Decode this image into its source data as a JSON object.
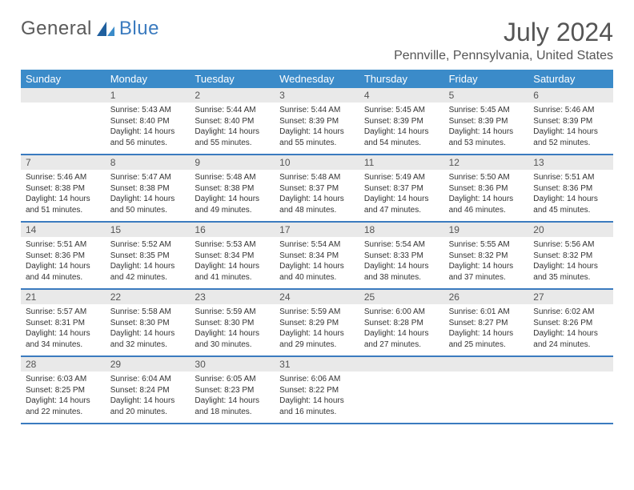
{
  "brand": {
    "part1": "General",
    "part2": "Blue"
  },
  "title": "July 2024",
  "location": "Pennville, Pennsylvania, United States",
  "colors": {
    "header_bg": "#3b8bc9",
    "header_text": "#ffffff",
    "accent": "#3b7bbf",
    "daybar_bg": "#e9e9e9",
    "text": "#333333",
    "title_text": "#555555"
  },
  "weekdays": [
    "Sunday",
    "Monday",
    "Tuesday",
    "Wednesday",
    "Thursday",
    "Friday",
    "Saturday"
  ],
  "weeks": [
    [
      {
        "n": "",
        "sr": "",
        "ss": "",
        "d1": "",
        "d2": ""
      },
      {
        "n": "1",
        "sr": "Sunrise: 5:43 AM",
        "ss": "Sunset: 8:40 PM",
        "d1": "Daylight: 14 hours",
        "d2": "and 56 minutes."
      },
      {
        "n": "2",
        "sr": "Sunrise: 5:44 AM",
        "ss": "Sunset: 8:40 PM",
        "d1": "Daylight: 14 hours",
        "d2": "and 55 minutes."
      },
      {
        "n": "3",
        "sr": "Sunrise: 5:44 AM",
        "ss": "Sunset: 8:39 PM",
        "d1": "Daylight: 14 hours",
        "d2": "and 55 minutes."
      },
      {
        "n": "4",
        "sr": "Sunrise: 5:45 AM",
        "ss": "Sunset: 8:39 PM",
        "d1": "Daylight: 14 hours",
        "d2": "and 54 minutes."
      },
      {
        "n": "5",
        "sr": "Sunrise: 5:45 AM",
        "ss": "Sunset: 8:39 PM",
        "d1": "Daylight: 14 hours",
        "d2": "and 53 minutes."
      },
      {
        "n": "6",
        "sr": "Sunrise: 5:46 AM",
        "ss": "Sunset: 8:39 PM",
        "d1": "Daylight: 14 hours",
        "d2": "and 52 minutes."
      }
    ],
    [
      {
        "n": "7",
        "sr": "Sunrise: 5:46 AM",
        "ss": "Sunset: 8:38 PM",
        "d1": "Daylight: 14 hours",
        "d2": "and 51 minutes."
      },
      {
        "n": "8",
        "sr": "Sunrise: 5:47 AM",
        "ss": "Sunset: 8:38 PM",
        "d1": "Daylight: 14 hours",
        "d2": "and 50 minutes."
      },
      {
        "n": "9",
        "sr": "Sunrise: 5:48 AM",
        "ss": "Sunset: 8:38 PM",
        "d1": "Daylight: 14 hours",
        "d2": "and 49 minutes."
      },
      {
        "n": "10",
        "sr": "Sunrise: 5:48 AM",
        "ss": "Sunset: 8:37 PM",
        "d1": "Daylight: 14 hours",
        "d2": "and 48 minutes."
      },
      {
        "n": "11",
        "sr": "Sunrise: 5:49 AM",
        "ss": "Sunset: 8:37 PM",
        "d1": "Daylight: 14 hours",
        "d2": "and 47 minutes."
      },
      {
        "n": "12",
        "sr": "Sunrise: 5:50 AM",
        "ss": "Sunset: 8:36 PM",
        "d1": "Daylight: 14 hours",
        "d2": "and 46 minutes."
      },
      {
        "n": "13",
        "sr": "Sunrise: 5:51 AM",
        "ss": "Sunset: 8:36 PM",
        "d1": "Daylight: 14 hours",
        "d2": "and 45 minutes."
      }
    ],
    [
      {
        "n": "14",
        "sr": "Sunrise: 5:51 AM",
        "ss": "Sunset: 8:36 PM",
        "d1": "Daylight: 14 hours",
        "d2": "and 44 minutes."
      },
      {
        "n": "15",
        "sr": "Sunrise: 5:52 AM",
        "ss": "Sunset: 8:35 PM",
        "d1": "Daylight: 14 hours",
        "d2": "and 42 minutes."
      },
      {
        "n": "16",
        "sr": "Sunrise: 5:53 AM",
        "ss": "Sunset: 8:34 PM",
        "d1": "Daylight: 14 hours",
        "d2": "and 41 minutes."
      },
      {
        "n": "17",
        "sr": "Sunrise: 5:54 AM",
        "ss": "Sunset: 8:34 PM",
        "d1": "Daylight: 14 hours",
        "d2": "and 40 minutes."
      },
      {
        "n": "18",
        "sr": "Sunrise: 5:54 AM",
        "ss": "Sunset: 8:33 PM",
        "d1": "Daylight: 14 hours",
        "d2": "and 38 minutes."
      },
      {
        "n": "19",
        "sr": "Sunrise: 5:55 AM",
        "ss": "Sunset: 8:32 PM",
        "d1": "Daylight: 14 hours",
        "d2": "and 37 minutes."
      },
      {
        "n": "20",
        "sr": "Sunrise: 5:56 AM",
        "ss": "Sunset: 8:32 PM",
        "d1": "Daylight: 14 hours",
        "d2": "and 35 minutes."
      }
    ],
    [
      {
        "n": "21",
        "sr": "Sunrise: 5:57 AM",
        "ss": "Sunset: 8:31 PM",
        "d1": "Daylight: 14 hours",
        "d2": "and 34 minutes."
      },
      {
        "n": "22",
        "sr": "Sunrise: 5:58 AM",
        "ss": "Sunset: 8:30 PM",
        "d1": "Daylight: 14 hours",
        "d2": "and 32 minutes."
      },
      {
        "n": "23",
        "sr": "Sunrise: 5:59 AM",
        "ss": "Sunset: 8:30 PM",
        "d1": "Daylight: 14 hours",
        "d2": "and 30 minutes."
      },
      {
        "n": "24",
        "sr": "Sunrise: 5:59 AM",
        "ss": "Sunset: 8:29 PM",
        "d1": "Daylight: 14 hours",
        "d2": "and 29 minutes."
      },
      {
        "n": "25",
        "sr": "Sunrise: 6:00 AM",
        "ss": "Sunset: 8:28 PM",
        "d1": "Daylight: 14 hours",
        "d2": "and 27 minutes."
      },
      {
        "n": "26",
        "sr": "Sunrise: 6:01 AM",
        "ss": "Sunset: 8:27 PM",
        "d1": "Daylight: 14 hours",
        "d2": "and 25 minutes."
      },
      {
        "n": "27",
        "sr": "Sunrise: 6:02 AM",
        "ss": "Sunset: 8:26 PM",
        "d1": "Daylight: 14 hours",
        "d2": "and 24 minutes."
      }
    ],
    [
      {
        "n": "28",
        "sr": "Sunrise: 6:03 AM",
        "ss": "Sunset: 8:25 PM",
        "d1": "Daylight: 14 hours",
        "d2": "and 22 minutes."
      },
      {
        "n": "29",
        "sr": "Sunrise: 6:04 AM",
        "ss": "Sunset: 8:24 PM",
        "d1": "Daylight: 14 hours",
        "d2": "and 20 minutes."
      },
      {
        "n": "30",
        "sr": "Sunrise: 6:05 AM",
        "ss": "Sunset: 8:23 PM",
        "d1": "Daylight: 14 hours",
        "d2": "and 18 minutes."
      },
      {
        "n": "31",
        "sr": "Sunrise: 6:06 AM",
        "ss": "Sunset: 8:22 PM",
        "d1": "Daylight: 14 hours",
        "d2": "and 16 minutes."
      },
      {
        "n": "",
        "sr": "",
        "ss": "",
        "d1": "",
        "d2": ""
      },
      {
        "n": "",
        "sr": "",
        "ss": "",
        "d1": "",
        "d2": ""
      },
      {
        "n": "",
        "sr": "",
        "ss": "",
        "d1": "",
        "d2": ""
      }
    ]
  ]
}
